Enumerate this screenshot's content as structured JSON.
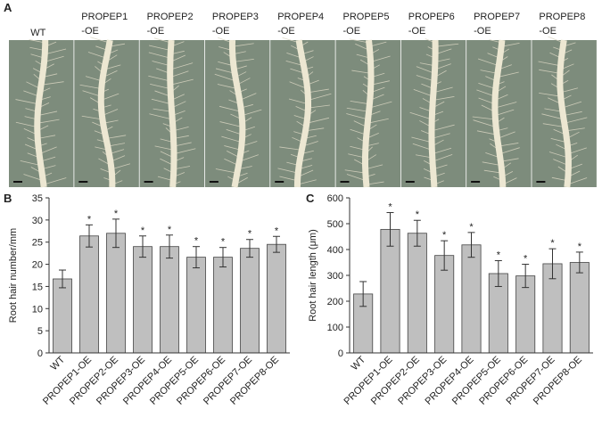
{
  "panel_a": {
    "label": "A",
    "columns": [
      [
        "WT"
      ],
      [
        "PROPEP1",
        "-OE"
      ],
      [
        "PROPEP2",
        "-OE"
      ],
      [
        "PROPEP3",
        "-OE"
      ],
      [
        "PROPEP4",
        "-OE"
      ],
      [
        "PROPEP5",
        "-OE"
      ],
      [
        "PROPEP6",
        "-OE"
      ],
      [
        "PROPEP7",
        "-OE"
      ],
      [
        "PROPEP8",
        "-OE"
      ]
    ]
  },
  "chart_data": [
    {
      "type": "bar",
      "panel": "B",
      "y_label": "Root hair number/mm",
      "categories": [
        "WT",
        "PROPEP1-OE",
        "PROPEP2-OE",
        "PROPEP3-OE",
        "PROPEP4-OE",
        "PROPEP5-OE",
        "PROPEP6-OE",
        "PROPEP7-OE",
        "PROPEP8-OE"
      ],
      "values": [
        16.7,
        26.4,
        27,
        24,
        24,
        21.6,
        21.6,
        23.6,
        24.5
      ],
      "errors": [
        2,
        2.5,
        3.2,
        2.4,
        2.6,
        2.4,
        2.2,
        2,
        1.8
      ],
      "significance": [
        null,
        "*",
        "*",
        "*",
        "*",
        "*",
        "*",
        "*",
        "*"
      ],
      "color": "#bfbfbf",
      "ylim": [
        0,
        35
      ],
      "yticks": [
        0,
        5,
        10,
        15,
        20,
        25,
        30,
        35
      ]
    },
    {
      "type": "bar",
      "panel": "C",
      "y_label": "Root hair length (μm)",
      "categories": [
        "WT",
        "PROPEP1-OE",
        "PROPEP2-OE",
        "PROPEP3-OE",
        "PROPEP4-OE",
        "PROPEP5-OE",
        "PROPEP6-OE",
        "PROPEP7-OE",
        "PROPEP8-OE"
      ],
      "values": [
        228,
        478,
        463,
        377,
        418,
        307,
        298,
        345,
        350
      ],
      "errors": [
        48,
        65,
        50,
        57,
        48,
        50,
        45,
        58,
        40
      ],
      "significance": [
        null,
        "*",
        "*",
        "*",
        "*",
        "*",
        "*",
        "*",
        "*"
      ],
      "color": "#bfbfbf",
      "ylim": [
        0,
        600
      ],
      "yticks": [
        0,
        100,
        200,
        300,
        400,
        500,
        600
      ]
    }
  ]
}
